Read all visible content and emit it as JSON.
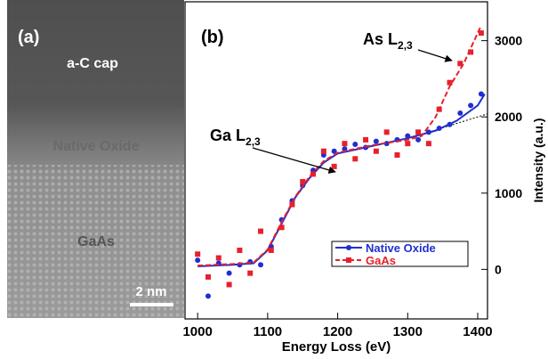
{
  "image_panel": {
    "label": "(a)",
    "layers": [
      "a-C cap",
      "Native Oxide",
      "GaAs"
    ],
    "scale_bar": "2 nm"
  },
  "chart_data": {
    "type": "scatter",
    "panel_label": "(b)",
    "xlabel": "Energy Loss (eV)",
    "ylabel": "Intensity (a.u.)",
    "xlim": [
      982,
      1414
    ],
    "ylim": [
      -650,
      3510
    ],
    "xticks": [
      1000,
      1100,
      1200,
      1300,
      1400
    ],
    "yticks": [
      0,
      1000,
      2000,
      3000
    ],
    "legend": "lower right",
    "annotations": [
      {
        "text": "As L",
        "sub": "2,3"
      },
      {
        "text": "Ga L",
        "sub": "2,3"
      }
    ],
    "series": [
      {
        "name": "Native Oxide",
        "color": "#1f2fd0",
        "x": [
          1000,
          1015,
          1030,
          1045,
          1060,
          1075,
          1090,
          1105,
          1120,
          1135,
          1150,
          1165,
          1180,
          1195,
          1210,
          1225,
          1240,
          1255,
          1270,
          1285,
          1300,
          1315,
          1330,
          1345,
          1360,
          1375,
          1390,
          1405
        ],
        "values": [
          120,
          -350,
          80,
          -50,
          60,
          100,
          60,
          300,
          650,
          900,
          1100,
          1300,
          1500,
          1550,
          1580,
          1640,
          1600,
          1680,
          1650,
          1700,
          1750,
          1700,
          1800,
          1850,
          1900,
          2050,
          2150,
          2300
        ],
        "fit_x": [
          1000,
          1050,
          1080,
          1100,
          1120,
          1140,
          1160,
          1180,
          1200,
          1250,
          1300,
          1340,
          1370,
          1400,
          1410
        ],
        "fit_values": [
          40,
          60,
          80,
          250,
          600,
          950,
          1200,
          1400,
          1520,
          1620,
          1720,
          1820,
          1950,
          2150,
          2300
        ]
      },
      {
        "name": "GaAs",
        "color": "#e8202a",
        "x": [
          1000,
          1015,
          1030,
          1045,
          1060,
          1075,
          1090,
          1105,
          1120,
          1135,
          1150,
          1165,
          1180,
          1195,
          1210,
          1225,
          1240,
          1255,
          1270,
          1285,
          1300,
          1315,
          1330,
          1345,
          1360,
          1375,
          1390,
          1405
        ],
        "values": [
          200,
          -100,
          150,
          -200,
          250,
          -50,
          500,
          250,
          550,
          850,
          1150,
          1250,
          1550,
          1350,
          1650,
          1450,
          1700,
          1550,
          1800,
          1500,
          1650,
          1800,
          1650,
          2100,
          2450,
          2700,
          2850,
          3100
        ],
        "fit_x": [
          1000,
          1050,
          1080,
          1100,
          1120,
          1140,
          1160,
          1180,
          1200,
          1250,
          1300,
          1320,
          1340,
          1360,
          1380,
          1395,
          1405
        ],
        "fit_values": [
          50,
          70,
          90,
          260,
          620,
          960,
          1220,
          1420,
          1530,
          1630,
          1700,
          1750,
          2000,
          2400,
          2700,
          3000,
          3200
        ]
      }
    ]
  }
}
